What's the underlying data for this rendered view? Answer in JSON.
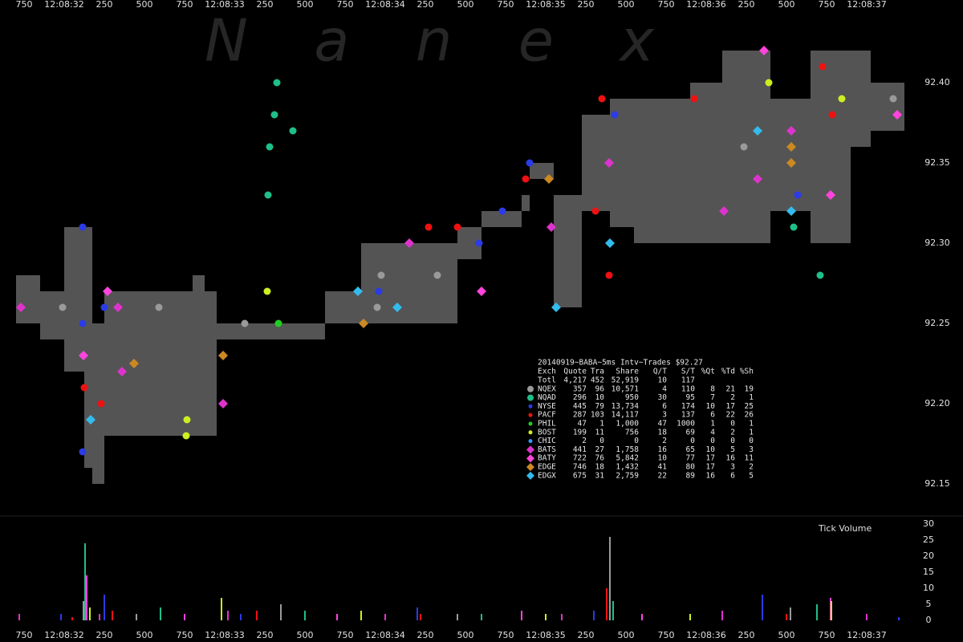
{
  "watermark": "N a n e x",
  "chart_data": [
    {
      "type": "price",
      "xlim": [
        31.6,
        37.6
      ],
      "xticks": [
        {
          "value": 31.75,
          "label": "750"
        },
        {
          "value": 32,
          "label": "12:08:32"
        },
        {
          "value": 32.25,
          "label": "250"
        },
        {
          "value": 32.5,
          "label": "500"
        },
        {
          "value": 32.75,
          "label": "750"
        },
        {
          "value": 33,
          "label": "12:08:33"
        },
        {
          "value": 33.25,
          "label": "250"
        },
        {
          "value": 33.5,
          "label": "500"
        },
        {
          "value": 33.75,
          "label": "750"
        },
        {
          "value": 34,
          "label": "12:08:34"
        },
        {
          "value": 34.25,
          "label": "250"
        },
        {
          "value": 34.5,
          "label": "500"
        },
        {
          "value": 34.75,
          "label": "750"
        },
        {
          "value": 35,
          "label": "12:08:35"
        },
        {
          "value": 35.25,
          "label": "250"
        },
        {
          "value": 35.5,
          "label": "500"
        },
        {
          "value": 35.75,
          "label": "750"
        },
        {
          "value": 36,
          "label": "12:08:36"
        },
        {
          "value": 36.25,
          "label": "250"
        },
        {
          "value": 36.5,
          "label": "500"
        },
        {
          "value": 36.75,
          "label": "750"
        },
        {
          "value": 37,
          "label": "12:08:37"
        }
      ],
      "ylim": [
        92.14,
        92.44
      ],
      "yticks": [
        92.15,
        {
          "value": 92.2,
          "label": "92.20"
        },
        92.25,
        {
          "value": 92.3,
          "label": "92.30"
        },
        92.35,
        {
          "value": 92.4,
          "label": "92.40"
        }
      ],
      "quote_band": {
        "color": "#545454",
        "x": [
          31.7,
          31.85,
          32.0,
          32.125,
          32.175,
          32.25,
          32.8,
          32.875,
          32.95,
          33.625,
          33.85,
          34.45,
          34.6,
          34.85,
          34.9,
          35.05,
          35.225,
          35.4,
          35.55,
          35.9,
          36.1,
          36.4,
          36.65,
          36.9,
          37.025,
          37.225
        ],
        "low": [
          92.25,
          92.24,
          92.22,
          92.16,
          92.15,
          92.18,
          92.18,
          92.18,
          92.24,
          92.25,
          92.25,
          92.29,
          92.31,
          92.32,
          92.34,
          92.26,
          92.32,
          92.31,
          92.3,
          92.3,
          92.3,
          92.32,
          92.3,
          92.36,
          92.37,
          92.37
        ],
        "high": [
          92.28,
          92.27,
          92.31,
          92.31,
          92.25,
          92.27,
          92.28,
          92.27,
          92.25,
          92.27,
          92.3,
          92.31,
          92.32,
          92.33,
          92.35,
          92.33,
          92.38,
          92.39,
          92.39,
          92.4,
          92.42,
          92.39,
          92.42,
          92.42,
          92.4,
          92.4
        ]
      },
      "series": [
        {
          "name": "NQEX",
          "color": "#9a9a9a",
          "marker": "circle",
          "x": [
            31.99,
            33.125,
            33.975,
            33.95,
            34.325,
            37.165,
            36.235,
            32.59
          ],
          "values": [
            92.26,
            92.25,
            92.28,
            92.26,
            92.28,
            92.39,
            92.36,
            92.26
          ]
        },
        {
          "name": "NQAD",
          "color": "#1fbf8a",
          "marker": "circle",
          "x": [
            33.325,
            33.31,
            33.28,
            33.27,
            33.425,
            36.71,
            36.545
          ],
          "values": [
            92.4,
            92.38,
            92.36,
            92.33,
            92.37,
            92.28,
            92.31
          ]
        },
        {
          "name": "NYSE",
          "color": "#2b3be6",
          "marker": "circle",
          "x": [
            32.115,
            32.115,
            32.115,
            32.25,
            33.96,
            34.585,
            34.9,
            35.43,
            36.57,
            34.73
          ],
          "values": [
            92.31,
            92.25,
            92.17,
            92.26,
            92.27,
            92.3,
            92.35,
            92.38,
            92.33,
            92.32
          ]
        },
        {
          "name": "PACF",
          "color": "#ee1111",
          "marker": "circle",
          "x": [
            32.125,
            32.23,
            34.27,
            34.45,
            34.875,
            35.35,
            35.395,
            35.925,
            36.725,
            36.785,
            35.31
          ],
          "values": [
            92.21,
            92.2,
            92.31,
            92.31,
            92.34,
            92.39,
            92.28,
            92.39,
            92.41,
            92.38,
            92.32
          ]
        },
        {
          "name": "PHIL",
          "color": "#22cc22",
          "marker": "circle",
          "x": [
            33.335
          ],
          "values": [
            92.25
          ]
        },
        {
          "name": "BOST",
          "color": "#ccee22",
          "marker": "circle",
          "x": [
            32.765,
            32.76,
            33.265,
            36.845,
            36.39
          ],
          "values": [
            92.19,
            92.18,
            92.27,
            92.39,
            92.4
          ]
        },
        {
          "name": "CHIC",
          "color": "#3399ff",
          "marker": "circle",
          "x": [],
          "values": []
        },
        {
          "name": "BATS",
          "color": "#dd33cc",
          "marker": "diamond",
          "x": [
            31.73,
            32.335,
            32.36,
            32.99,
            34.15,
            35.035,
            35.395,
            36.11,
            36.53,
            36.32
          ],
          "values": [
            92.26,
            92.26,
            92.22,
            92.2,
            92.3,
            92.31,
            92.35,
            92.32,
            92.37,
            92.34
          ]
        },
        {
          "name": "BATY",
          "color": "#ff44dd",
          "marker": "diamond",
          "x": [
            32.12,
            32.27,
            36.36,
            36.775,
            34.6,
            37.19
          ],
          "values": [
            92.23,
            92.27,
            92.42,
            92.33,
            92.27,
            92.38
          ]
        },
        {
          "name": "EDGE",
          "color": "#cc8822",
          "marker": "diamond",
          "x": [
            32.435,
            32.99,
            33.865,
            35.02,
            36.53,
            36.53
          ],
          "values": [
            92.225,
            92.23,
            92.25,
            92.34,
            92.35,
            92.36
          ]
        },
        {
          "name": "EDGX",
          "color": "#33bbee",
          "marker": "diamond",
          "x": [
            32.165,
            34.075,
            33.83,
            35.4,
            35.065,
            36.32,
            36.53
          ],
          "values": [
            92.19,
            92.26,
            92.27,
            92.3,
            92.26,
            92.37,
            92.32
          ]
        }
      ]
    },
    {
      "type": "volume",
      "title": "Tick Volume",
      "xlim": [
        31.6,
        37.6
      ],
      "xticks": [
        {
          "value": 31.75,
          "label": "750"
        },
        {
          "value": 32,
          "label": "12:08:32"
        },
        {
          "value": 32.25,
          "label": "250"
        },
        {
          "value": 32.5,
          "label": "500"
        },
        {
          "value": 32.75,
          "label": "750"
        },
        {
          "value": 33,
          "label": "12:08:33"
        },
        {
          "value": 33.25,
          "label": "250"
        },
        {
          "value": 33.5,
          "label": "500"
        },
        {
          "value": 33.75,
          "label": "750"
        },
        {
          "value": 34,
          "label": "12:08:34"
        },
        {
          "value": 34.25,
          "label": "250"
        },
        {
          "value": 34.5,
          "label": "500"
        },
        {
          "value": 34.75,
          "label": "750"
        },
        {
          "value": 35,
          "label": "12:08:35"
        },
        {
          "value": 35.25,
          "label": "250"
        },
        {
          "value": 35.5,
          "label": "500"
        },
        {
          "value": 35.75,
          "label": "750"
        },
        {
          "value": 36,
          "label": "12:08:36"
        },
        {
          "value": 36.25,
          "label": "250"
        },
        {
          "value": 36.5,
          "label": "500"
        },
        {
          "value": 36.75,
          "label": "750"
        },
        {
          "value": 37,
          "label": "12:08:37"
        }
      ],
      "ylim": [
        0,
        30
      ],
      "yticks": [
        0,
        5,
        10,
        15,
        20,
        25,
        30
      ],
      "colors": [
        "#dd33cc",
        "#2b3be6",
        "#ee1111",
        "#9a9a9a",
        "#1fbf8a",
        "#ff44dd",
        "#ccee22"
      ],
      "x": [
        31.72,
        31.98,
        32.05,
        32.12,
        32.13,
        32.14,
        32.16,
        32.22,
        32.25,
        32.3,
        32.45,
        32.6,
        32.75,
        32.98,
        33.02,
        33.1,
        33.2,
        33.35,
        33.5,
        33.7,
        33.85,
        34.0,
        34.2,
        34.22,
        34.45,
        34.6,
        34.85,
        35.0,
        35.1,
        35.3,
        35.38,
        35.4,
        35.42,
        35.6,
        35.9,
        36.1,
        36.35,
        36.5,
        36.525,
        36.69,
        36.775,
        36.78,
        37.0,
        37.2
      ],
      "values": [
        2,
        2,
        1,
        6,
        24,
        14,
        4,
        2,
        8,
        3,
        2,
        4,
        2,
        7,
        3,
        2,
        3,
        5,
        3,
        2,
        3,
        2,
        4,
        2,
        2,
        2,
        3,
        2,
        2,
        3,
        10,
        26,
        6,
        2,
        2,
        3,
        8,
        2,
        4,
        5,
        7,
        6,
        2,
        1
      ]
    }
  ],
  "stats_table": {
    "title": "20140919~BABA~5ms Intv~Trades $92.27",
    "header": [
      "Exch",
      "Quote",
      "Tra",
      "Share",
      "Q/T",
      "S/T",
      "%Qt",
      "%Td",
      "%Sh"
    ],
    "rows": [
      [
        "Totl",
        "4,217",
        "452",
        "52,919",
        "10",
        "117"
      ],
      [
        "NQEX",
        "357",
        "96",
        "10,571",
        "4",
        "110",
        "8",
        "21",
        "19"
      ],
      [
        "NQAD",
        "296",
        "10",
        "950",
        "30",
        "95",
        "7",
        "2",
        "1"
      ],
      [
        "NYSE",
        "445",
        "79",
        "13,734",
        "6",
        "174",
        "10",
        "17",
        "25"
      ],
      [
        "PACF",
        "287",
        "103",
        "14,117",
        "3",
        "137",
        "6",
        "22",
        "26"
      ],
      [
        "PHIL",
        "47",
        "1",
        "1,000",
        "47",
        "1000",
        "1",
        "0",
        "1"
      ],
      [
        "BOST",
        "199",
        "11",
        "756",
        "18",
        "69",
        "4",
        "2",
        "1"
      ],
      [
        "CHIC",
        "2",
        "0",
        "0",
        "2",
        "0",
        "0",
        "0",
        "0"
      ],
      [
        "BATS",
        "441",
        "27",
        "1,758",
        "16",
        "65",
        "10",
        "5",
        "3"
      ],
      [
        "BATY",
        "722",
        "76",
        "5,842",
        "10",
        "77",
        "17",
        "16",
        "11"
      ],
      [
        "EDGE",
        "746",
        "18",
        "1,432",
        "41",
        "80",
        "17",
        "3",
        "2"
      ],
      [
        "EDGX",
        "675",
        "31",
        "2,759",
        "22",
        "89",
        "16",
        "6",
        "5"
      ]
    ]
  }
}
